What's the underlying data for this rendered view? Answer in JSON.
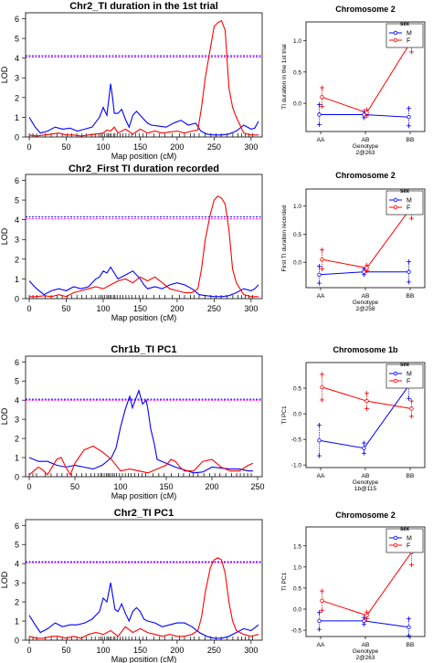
{
  "chart_data": [
    {
      "type": "line",
      "title": "Chr2_TI duration in the 1st trial",
      "xlabel": "Map position (cM)",
      "ylabel": "LOD",
      "xlim": [
        -5,
        315
      ],
      "ylim": [
        0,
        6.3
      ],
      "xticks": [
        0,
        50,
        100,
        150,
        200,
        250,
        300
      ],
      "yticks": [
        0,
        1,
        2,
        3,
        4,
        5,
        6
      ],
      "thresholds": [
        4.05,
        4.12
      ],
      "series": [
        {
          "color": "#0000ff",
          "x": [
            0,
            8,
            15,
            25,
            35,
            45,
            55,
            65,
            75,
            85,
            95,
            100,
            105,
            110,
            113,
            115,
            120,
            125,
            130,
            135,
            140,
            145,
            150,
            155,
            160,
            165,
            175,
            185,
            195,
            205,
            215,
            225,
            232,
            240,
            250,
            260,
            270,
            280,
            290,
            300,
            305,
            310
          ],
          "y": [
            1.0,
            0.5,
            0.2,
            0.3,
            0.5,
            0.4,
            0.45,
            0.3,
            0.4,
            0.5,
            1.0,
            1.5,
            1.1,
            2.7,
            1.9,
            1.2,
            1.2,
            1.4,
            0.9,
            0.5,
            1.1,
            1.3,
            1.1,
            0.9,
            0.7,
            0.6,
            0.55,
            0.5,
            0.7,
            0.85,
            0.6,
            0.7,
            0.3,
            0.15,
            0.1,
            0.1,
            0.15,
            0.3,
            0.6,
            0.4,
            0.45,
            0.8
          ]
        },
        {
          "color": "#ff0000",
          "x": [
            0,
            10,
            20,
            30,
            40,
            50,
            60,
            70,
            80,
            90,
            100,
            105,
            110,
            115,
            120,
            130,
            140,
            150,
            160,
            170,
            180,
            190,
            200,
            210,
            220,
            228,
            233,
            238,
            245,
            250,
            255,
            260,
            265,
            270,
            275,
            280,
            290,
            300,
            310
          ],
          "y": [
            0.1,
            0.05,
            0.1,
            0.15,
            0.2,
            0.1,
            0.1,
            0.05,
            0.1,
            0.15,
            0.2,
            0.35,
            0.3,
            0.5,
            0.2,
            0.4,
            0.15,
            0.4,
            0.2,
            0.3,
            0.2,
            0.25,
            0.3,
            0.2,
            0.3,
            0.35,
            1.5,
            3.0,
            4.5,
            5.6,
            5.8,
            5.9,
            5.4,
            2.5,
            1.5,
            1.0,
            0.2,
            0.1,
            0.1
          ]
        }
      ]
    },
    {
      "type": "line",
      "title": "Chr2_First TI duration recorded",
      "xlabel": "Map position (cM)",
      "ylabel": "LOD",
      "xlim": [
        -5,
        315
      ],
      "ylim": [
        0,
        6.3
      ],
      "xticks": [
        0,
        50,
        100,
        150,
        200,
        250,
        300
      ],
      "yticks": [
        0,
        1,
        2,
        3,
        4,
        5,
        6
      ],
      "thresholds": [
        4.05,
        4.15
      ],
      "series": [
        {
          "color": "#0000ff",
          "x": [
            0,
            10,
            20,
            30,
            40,
            50,
            60,
            70,
            80,
            90,
            95,
            100,
            105,
            110,
            115,
            120,
            130,
            140,
            150,
            155,
            160,
            170,
            180,
            190,
            200,
            210,
            220,
            230,
            240,
            250,
            260,
            270,
            280,
            290,
            300,
            305,
            310
          ],
          "y": [
            0.9,
            0.5,
            0.2,
            0.4,
            0.5,
            0.4,
            0.6,
            0.5,
            0.6,
            1.0,
            1.1,
            1.4,
            1.3,
            1.6,
            1.3,
            1.0,
            1.2,
            1.4,
            1.0,
            0.7,
            0.5,
            0.6,
            0.5,
            0.7,
            0.8,
            0.7,
            0.5,
            0.2,
            0.15,
            0.1,
            0.1,
            0.15,
            0.3,
            0.5,
            0.4,
            0.5,
            0.7
          ]
        },
        {
          "color": "#ff0000",
          "x": [
            0,
            10,
            20,
            30,
            40,
            50,
            60,
            70,
            80,
            90,
            100,
            110,
            120,
            130,
            140,
            150,
            160,
            170,
            180,
            190,
            200,
            210,
            220,
            228,
            233,
            238,
            245,
            250,
            255,
            260,
            265,
            270,
            275,
            280,
            290,
            300,
            310
          ],
          "y": [
            0.1,
            0.1,
            0.15,
            0.1,
            0.2,
            0.1,
            0.3,
            0.4,
            0.5,
            0.6,
            0.5,
            0.7,
            0.9,
            1.0,
            0.8,
            1.1,
            0.9,
            1.1,
            0.8,
            0.5,
            0.4,
            0.3,
            0.3,
            0.5,
            1.5,
            3.0,
            4.3,
            5.0,
            5.2,
            5.1,
            4.8,
            3.5,
            1.5,
            0.8,
            0.2,
            0.1,
            0.1
          ]
        }
      ]
    },
    {
      "type": "line",
      "title": "Chr1b_TI PC1",
      "xlabel": "Map position (cM)",
      "ylabel": "LOD",
      "xlim": [
        -4,
        255
      ],
      "ylim": [
        0,
        6.3
      ],
      "xticks": [
        0,
        50,
        100,
        150,
        200,
        250
      ],
      "yticks": [
        0,
        1,
        2,
        3,
        4,
        5,
        6
      ],
      "thresholds": [
        4.0,
        4.05
      ],
      "series": [
        {
          "color": "#0000ff",
          "x": [
            0,
            10,
            20,
            30,
            40,
            50,
            60,
            70,
            80,
            90,
            95,
            100,
            105,
            110,
            113,
            116,
            120,
            124,
            128,
            130,
            133,
            137,
            140,
            145,
            150,
            155,
            160,
            170,
            180,
            190,
            200,
            210,
            220,
            230,
            240,
            245
          ],
          "y": [
            1.0,
            0.8,
            0.8,
            0.6,
            0.5,
            0.6,
            0.5,
            0.4,
            0.6,
            1.0,
            1.5,
            2.6,
            3.5,
            4.2,
            3.6,
            4.0,
            4.5,
            3.8,
            4.0,
            3.5,
            2.5,
            1.7,
            0.9,
            0.8,
            0.7,
            0.6,
            0.5,
            0.35,
            0.2,
            0.25,
            0.5,
            0.45,
            0.4,
            0.4,
            0.3,
            0.3
          ]
        },
        {
          "color": "#ff0000",
          "x": [
            0,
            5,
            10,
            15,
            20,
            25,
            30,
            35,
            40,
            45,
            50,
            60,
            70,
            80,
            90,
            95,
            100,
            110,
            120,
            130,
            140,
            150,
            155,
            160,
            165,
            170,
            180,
            190,
            200,
            210,
            220,
            230,
            240,
            245
          ],
          "y": [
            0.1,
            0.3,
            0.5,
            0.35,
            0.1,
            0.5,
            0.9,
            1.0,
            0.5,
            0.1,
            0.7,
            1.4,
            1.6,
            1.3,
            0.9,
            0.6,
            0.3,
            0.4,
            0.3,
            0.2,
            0.4,
            0.6,
            0.9,
            0.8,
            0.5,
            0.3,
            0.3,
            0.8,
            0.9,
            0.5,
            0.3,
            0.3,
            0.6,
            0.7
          ]
        }
      ]
    },
    {
      "type": "line",
      "title": "Chr2_TI PC1",
      "xlabel": "Map position (cM)",
      "ylabel": "LOD",
      "xlim": [
        -5,
        315
      ],
      "ylim": [
        0,
        6.3
      ],
      "xticks": [
        0,
        50,
        100,
        150,
        200,
        250,
        300
      ],
      "yticks": [
        0,
        1,
        2,
        3,
        4,
        5,
        6
      ],
      "thresholds": [
        4.05,
        4.1
      ],
      "series": [
        {
          "color": "#0000ff",
          "x": [
            0,
            8,
            15,
            25,
            35,
            45,
            55,
            65,
            75,
            85,
            95,
            100,
            105,
            110,
            113,
            116,
            120,
            125,
            130,
            135,
            140,
            145,
            150,
            155,
            160,
            170,
            180,
            190,
            200,
            210,
            220,
            230,
            240,
            250,
            260,
            270,
            280,
            290,
            300,
            310
          ],
          "y": [
            1.3,
            0.8,
            0.4,
            0.6,
            0.9,
            0.7,
            0.8,
            0.8,
            0.9,
            1.1,
            1.5,
            2.2,
            2.0,
            3.0,
            2.3,
            1.6,
            1.5,
            1.9,
            1.4,
            1.0,
            1.5,
            1.7,
            1.5,
            1.1,
            1.0,
            0.9,
            0.7,
            0.8,
            0.9,
            0.9,
            0.7,
            0.4,
            0.2,
            0.1,
            0.1,
            0.2,
            0.4,
            0.6,
            0.5,
            0.8
          ]
        },
        {
          "color": "#ff0000",
          "x": [
            0,
            10,
            20,
            30,
            40,
            50,
            60,
            70,
            80,
            90,
            100,
            110,
            120,
            130,
            140,
            150,
            160,
            170,
            180,
            190,
            200,
            210,
            220,
            228,
            233,
            238,
            245,
            250,
            255,
            260,
            265,
            270,
            275,
            280,
            290,
            300,
            310
          ],
          "y": [
            0.2,
            0.1,
            0.1,
            0.2,
            0.2,
            0.1,
            0.2,
            0.1,
            0.3,
            0.4,
            0.3,
            0.5,
            0.2,
            0.7,
            0.4,
            0.6,
            0.4,
            0.3,
            0.2,
            0.3,
            0.2,
            0.2,
            0.3,
            0.5,
            1.2,
            2.5,
            3.8,
            4.2,
            4.3,
            4.2,
            3.5,
            2.0,
            1.0,
            0.5,
            0.3,
            0.2,
            0.3
          ]
        }
      ]
    },
    {
      "type": "line",
      "title": "Chromosome 2",
      "xlabel": "Genotype",
      "xlabel2": "2@263",
      "ylabel": "TI duration in the 1st trial",
      "categories": [
        "AA",
        "AB",
        "BB"
      ],
      "ylim": [
        -0.45,
        1.3
      ],
      "yticks": [
        0,
        0.5,
        1.0
      ],
      "ytick_labels": [
        "0.0",
        "0.5",
        "1.0"
      ],
      "legend": {
        "title": "sex",
        "entries": [
          "M",
          "F"
        ],
        "position": "top-right"
      },
      "series": [
        {
          "name": "M",
          "color": "#0000ff",
          "values": [
            -0.18,
            -0.18,
            -0.22
          ],
          "errors": [
            0.16,
            0.05,
            0.14
          ]
        },
        {
          "name": "F",
          "color": "#ff0000",
          "values": [
            0.1,
            -0.15,
            1.0
          ],
          "errors": [
            0.15,
            0.05,
            0.18
          ]
        }
      ]
    },
    {
      "type": "line",
      "title": "Chromosome 2",
      "xlabel": "Genotype",
      "xlabel2": "2@258",
      "ylabel": "First TI duration recorded",
      "categories": [
        "AA",
        "AB",
        "BB"
      ],
      "ylim": [
        -0.45,
        1.3
      ],
      "yticks": [
        0,
        0.5,
        1.0
      ],
      "ytick_labels": [
        "0.0",
        "0.5",
        "1.0"
      ],
      "legend": {
        "title": "sex",
        "entries": [
          "M",
          "F"
        ],
        "position": "top-right"
      },
      "series": [
        {
          "name": "M",
          "color": "#0000ff",
          "values": [
            -0.22,
            -0.17,
            -0.17
          ],
          "errors": [
            0.15,
            0.05,
            0.18
          ]
        },
        {
          "name": "F",
          "color": "#ff0000",
          "values": [
            0.05,
            -0.1,
            0.98
          ],
          "errors": [
            0.17,
            0.05,
            0.2
          ]
        }
      ]
    },
    {
      "type": "line",
      "title": "Chromosome 1b",
      "xlabel": "Genotype",
      "xlabel2": "1b@115",
      "ylabel": "TI PC1",
      "categories": [
        "AA",
        "AB",
        "BB"
      ],
      "ylim": [
        -1.05,
        1.0
      ],
      "yticks": [
        -1.0,
        -0.5,
        0.0,
        0.5
      ],
      "ytick_labels": [
        "-1.0",
        "-0.5",
        "0.0",
        "0.5"
      ],
      "legend": {
        "title": "sex",
        "entries": [
          "M",
          "F"
        ],
        "position": "top-right"
      },
      "series": [
        {
          "name": "M",
          "color": "#0000ff",
          "values": [
            -0.52,
            -0.67,
            0.55
          ],
          "errors": [
            0.3,
            0.1,
            0.25
          ]
        },
        {
          "name": "F",
          "color": "#ff0000",
          "values": [
            0.52,
            0.25,
            0.1
          ],
          "errors": [
            0.25,
            0.15,
            0.15
          ]
        }
      ]
    },
    {
      "type": "line",
      "title": "Chromosome 2",
      "xlabel": "Genotype",
      "xlabel2": "2@263",
      "ylabel": "TI PC1",
      "categories": [
        "AA",
        "AB",
        "BB"
      ],
      "ylim": [
        -0.65,
        1.95
      ],
      "yticks": [
        -0.5,
        0.0,
        0.5,
        1.0,
        1.5
      ],
      "ytick_labels": [
        "-0.5",
        "0.0",
        "0.5",
        "1.0",
        "1.5"
      ],
      "legend": {
        "title": "sex",
        "entries": [
          "M",
          "F"
        ],
        "position": "top-right"
      },
      "series": [
        {
          "name": "M",
          "color": "#0000ff",
          "values": [
            -0.28,
            -0.28,
            -0.43
          ],
          "errors": [
            0.2,
            0.08,
            0.2
          ]
        },
        {
          "name": "F",
          "color": "#ff0000",
          "values": [
            0.2,
            -0.15,
            1.35
          ],
          "errors": [
            0.23,
            0.08,
            0.3
          ]
        }
      ]
    }
  ]
}
